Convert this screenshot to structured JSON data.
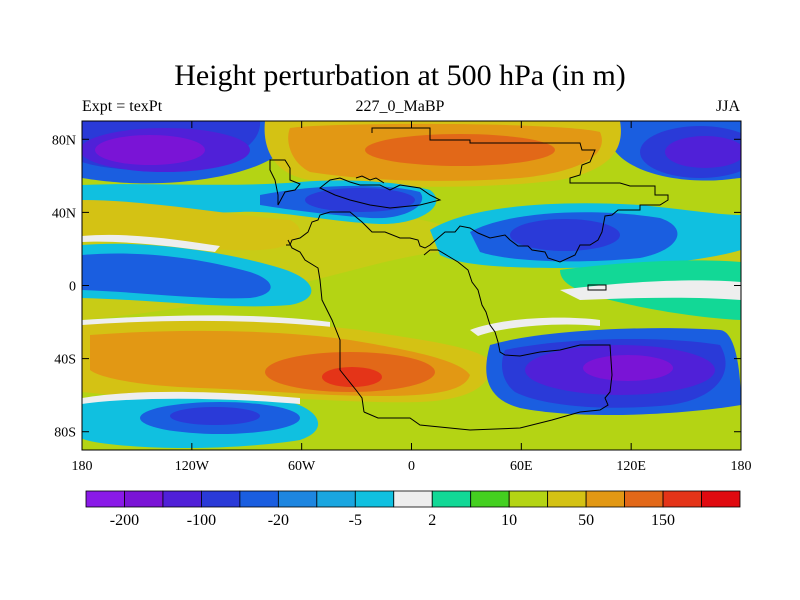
{
  "title": "Height perturbation at 500 hPa (in m)",
  "subtitle_left": "Expt = texPt",
  "subtitle_center": "227_0_MaBP",
  "subtitle_right": "JJA",
  "map": {
    "lon_range": [
      -180,
      180
    ],
    "lat_range": [
      -90,
      90
    ],
    "x_ticks": [
      {
        "lon": -180,
        "label": "180"
      },
      {
        "lon": -120,
        "label": "120W"
      },
      {
        "lon": -60,
        "label": "60W"
      },
      {
        "lon": 0,
        "label": "0"
      },
      {
        "lon": 60,
        "label": "60E"
      },
      {
        "lon": 120,
        "label": "120E"
      },
      {
        "lon": 180,
        "label": "180"
      }
    ],
    "y_ticks": [
      {
        "lat": 80,
        "label": "80N"
      },
      {
        "lat": 40,
        "label": "40N"
      },
      {
        "lat": 0,
        "label": "0"
      },
      {
        "lat": -40,
        "label": "40S"
      },
      {
        "lat": -80,
        "label": "80S"
      }
    ]
  },
  "colorbar": {
    "colors": [
      "#8a1ae8",
      "#7a14d6",
      "#5020d8",
      "#2a3ad8",
      "#1a5ee0",
      "#1e86e0",
      "#1aa6e0",
      "#10c0e0",
      "#eeeeee",
      "#12d896",
      "#44d020",
      "#b4d414",
      "#d4c214",
      "#e29814",
      "#e26818",
      "#e43418",
      "#e00a10"
    ],
    "labels": [
      "-200",
      "-100",
      "-20",
      "-5",
      "2",
      "10",
      "50",
      "150"
    ]
  },
  "chart_data": {
    "type": "heatmap",
    "variable": "500 hPa height perturbation",
    "units": "m",
    "contour_levels": [
      -200,
      -100,
      -20,
      -5,
      2,
      10,
      50,
      150
    ],
    "features": [
      {
        "lon": -160,
        "lat": 75,
        "value": -200
      },
      {
        "lon": 160,
        "lat": 72,
        "value": -150
      },
      {
        "lon": 30,
        "lat": 72,
        "value": 100
      },
      {
        "lon": 100,
        "lat": 28,
        "value": -60
      },
      {
        "lon": -20,
        "lat": 50,
        "value": -60
      },
      {
        "lon": -120,
        "lat": 25,
        "value": 20
      },
      {
        "lon": -30,
        "lat": -50,
        "value": 150
      },
      {
        "lon": 115,
        "lat": -45,
        "value": -200
      },
      {
        "lon": -110,
        "lat": -65,
        "value": -40
      },
      {
        "lon": 10,
        "lat": -20,
        "value": 40
      },
      {
        "lon": -150,
        "lat": 0,
        "value": -15
      }
    ]
  }
}
